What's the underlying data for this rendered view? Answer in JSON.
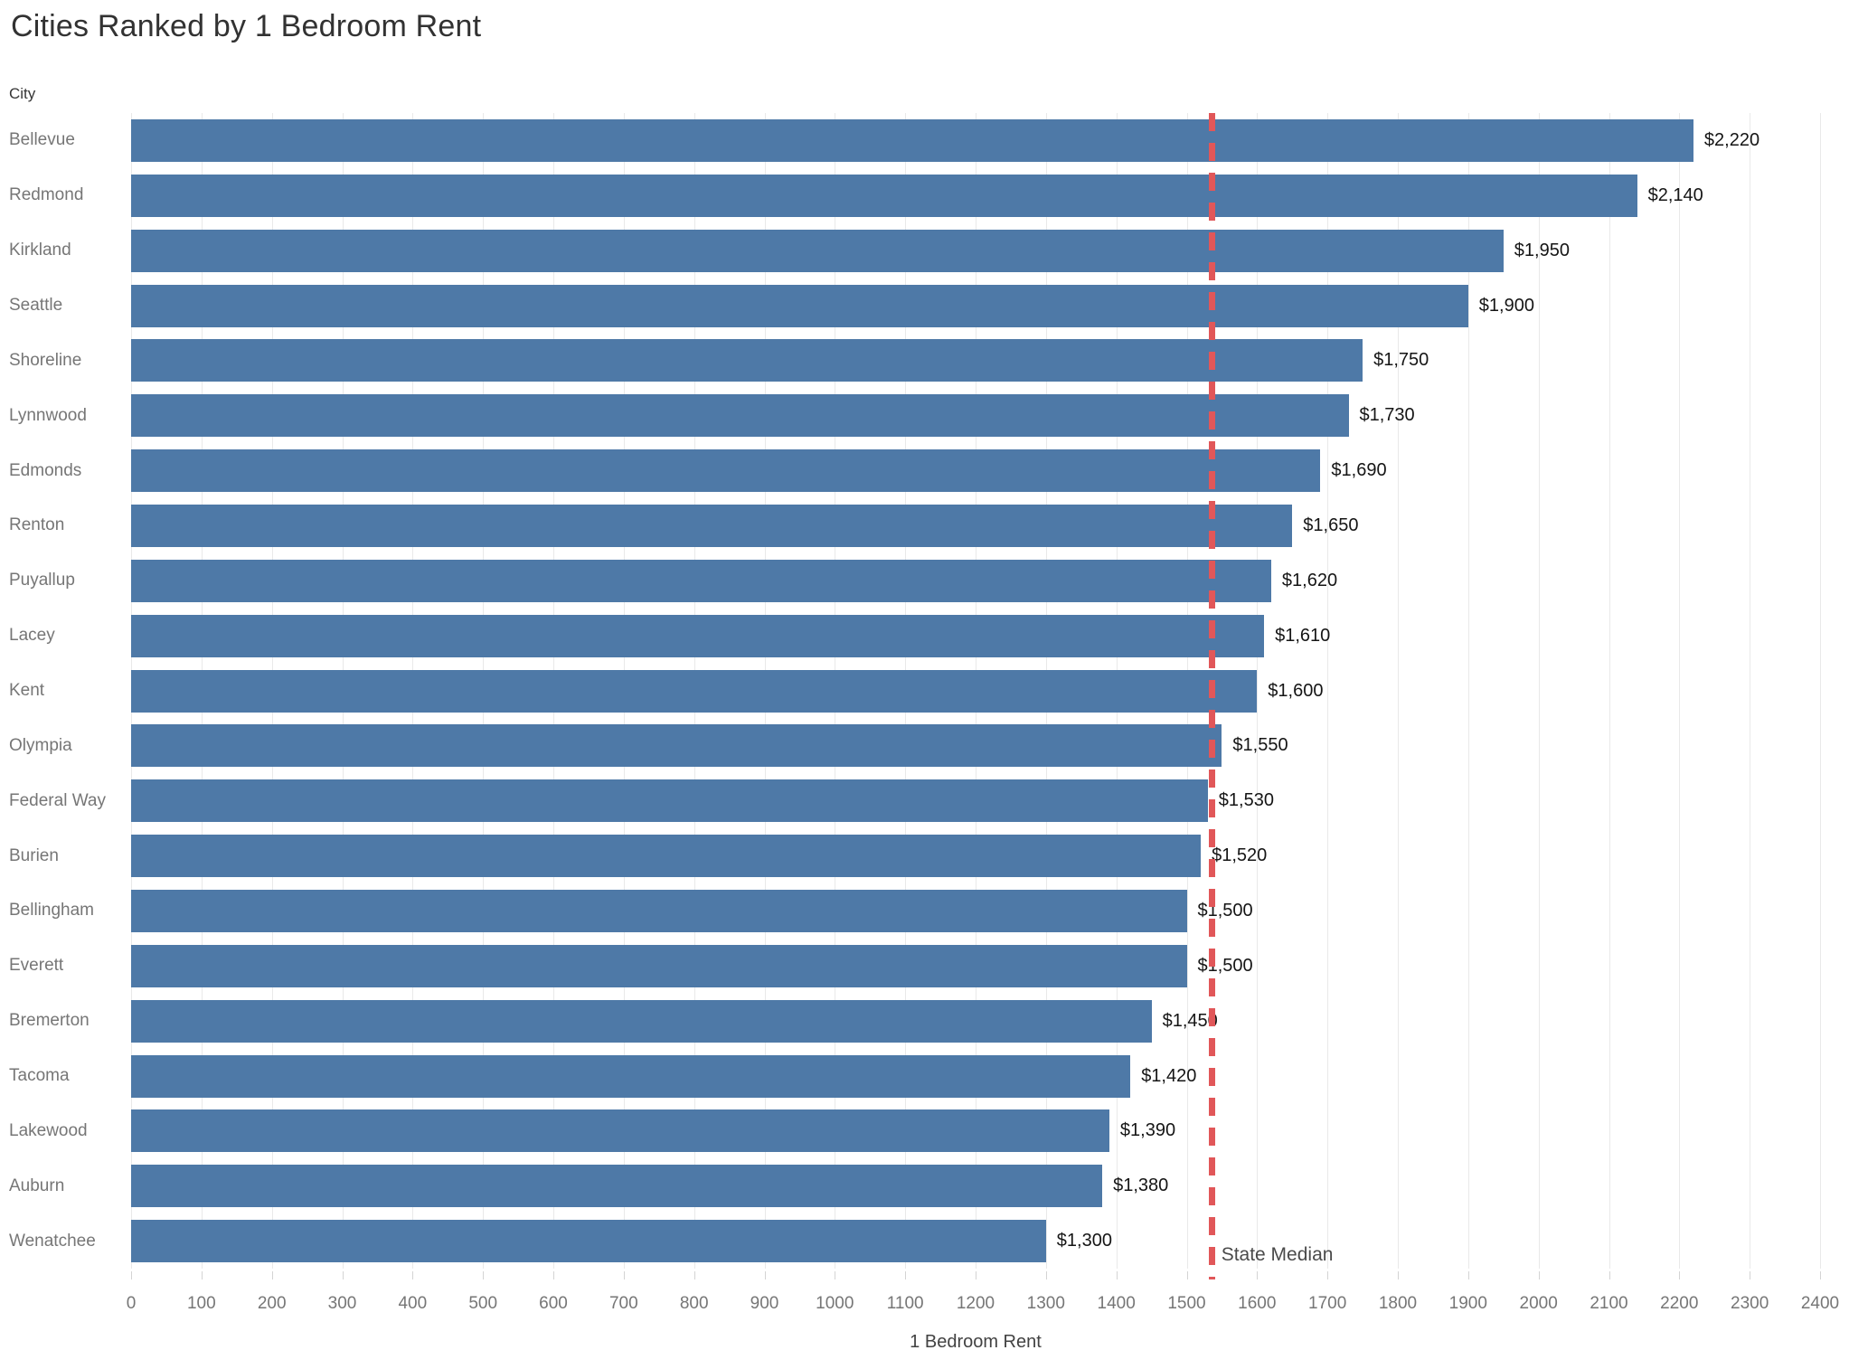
{
  "title": "Cities Ranked by 1 Bedroom Rent",
  "row_field_label": "City",
  "colors": {
    "bar": "#4e79a7",
    "median_line": "#e15759",
    "gridline": "#e9e9e9",
    "tick_mark": "#d4d4d4",
    "tick_label": "#767676",
    "city_label": "#767676",
    "value_label": "#151515",
    "title": "#323232"
  },
  "chart_data": {
    "type": "bar",
    "orientation": "horizontal",
    "title": "Cities Ranked by 1 Bedroom Rent",
    "xlabel": "1 Bedroom Rent",
    "ylabel": "City",
    "xlim": [
      0,
      2400
    ],
    "grid": true,
    "x_ticks": [
      0,
      100,
      200,
      300,
      400,
      500,
      600,
      700,
      800,
      900,
      1000,
      1100,
      1200,
      1300,
      1400,
      1500,
      1600,
      1700,
      1800,
      1900,
      2000,
      2100,
      2200,
      2300,
      2400
    ],
    "categories": [
      "Bellevue",
      "Redmond",
      "Kirkland",
      "Seattle",
      "Shoreline",
      "Lynnwood",
      "Edmonds",
      "Renton",
      "Puyallup",
      "Lacey",
      "Kent",
      "Olympia",
      "Federal Way",
      "Burien",
      "Bellingham",
      "Everett",
      "Bremerton",
      "Tacoma",
      "Lakewood",
      "Auburn",
      "Wenatchee"
    ],
    "values": [
      2220,
      2140,
      1950,
      1900,
      1750,
      1730,
      1690,
      1650,
      1620,
      1610,
      1600,
      1550,
      1530,
      1520,
      1500,
      1500,
      1450,
      1420,
      1390,
      1380,
      1300
    ],
    "value_labels": [
      "$2,220",
      "$2,140",
      "$1,950",
      "$1,900",
      "$1,750",
      "$1,730",
      "$1,690",
      "$1,650",
      "$1,620",
      "$1,610",
      "$1,600",
      "$1,550",
      "$1,530",
      "$1,520",
      "$1,500",
      "$1,500",
      "$1,450",
      "$1,420",
      "$1,390",
      "$1,380",
      "$1,300"
    ],
    "annotations": [
      {
        "type": "vline",
        "label": "State Median",
        "x": 1535,
        "style": "dashed",
        "color": "#e15759"
      }
    ]
  }
}
